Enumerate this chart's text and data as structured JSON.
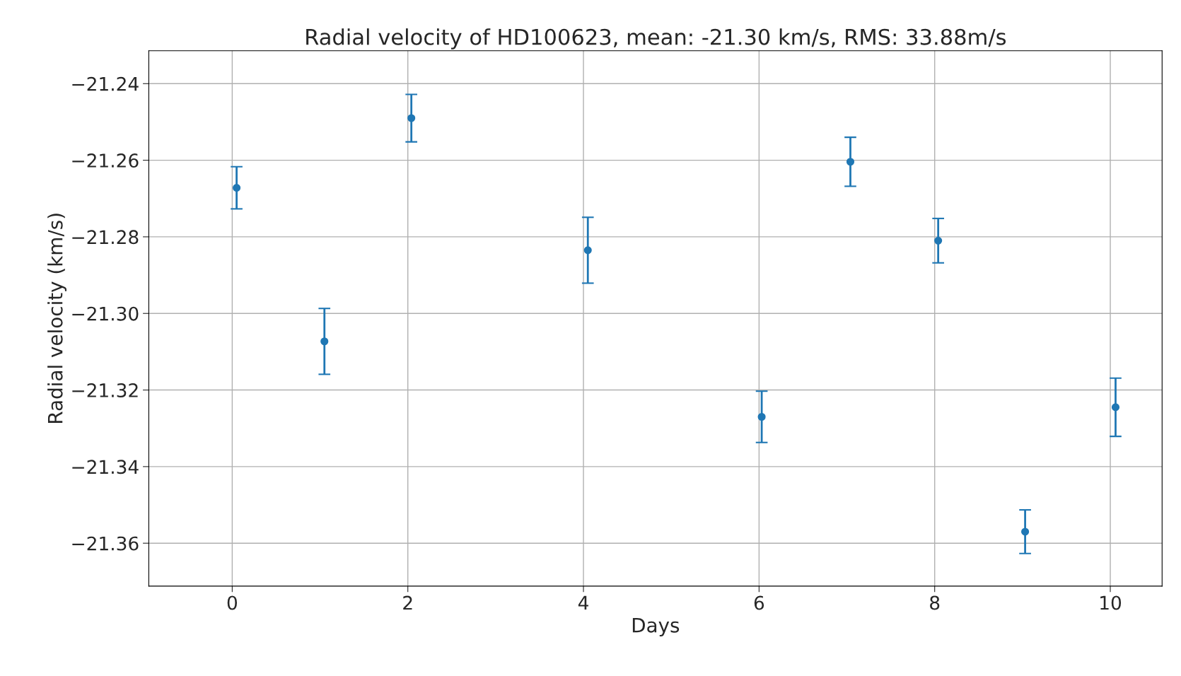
{
  "chart_data": {
    "type": "scatter",
    "title": "Radial velocity of HD100623, mean: -21.30 km/s, RMS: 33.88m/s",
    "xlabel": "Days",
    "ylabel": "Radial velocity (km/s)",
    "x": [
      0.05,
      1.05,
      2.04,
      4.05,
      6.03,
      7.04,
      8.04,
      9.03,
      10.06
    ],
    "series": [
      {
        "color": "#1f77b4",
        "values": [
          -21.2672,
          -21.3073,
          -21.249,
          -21.2835,
          -21.327,
          -21.2604,
          -21.281,
          -21.357,
          -21.3245
        ],
        "errors": [
          0.0055,
          0.0086,
          0.0062,
          0.0086,
          0.0067,
          0.0064,
          0.0058,
          0.0057,
          0.0076
        ]
      }
    ],
    "xlim": [
      -0.95,
      10.59
    ],
    "ylim": [
      -21.3712,
      -21.2314
    ],
    "xticks": [
      0,
      2,
      4,
      6,
      8,
      10
    ],
    "yticks": [
      {
        "value": -21.36,
        "label": "−21.36"
      },
      {
        "value": -21.34,
        "label": "−21.34"
      },
      {
        "value": -21.32,
        "label": "−21.32"
      },
      {
        "value": -21.3,
        "label": "−21.30"
      },
      {
        "value": -21.28,
        "label": "−21.28"
      },
      {
        "value": -21.26,
        "label": "−21.26"
      },
      {
        "value": -21.24,
        "label": "−21.24"
      }
    ],
    "grid": true,
    "marker": "circle"
  }
}
